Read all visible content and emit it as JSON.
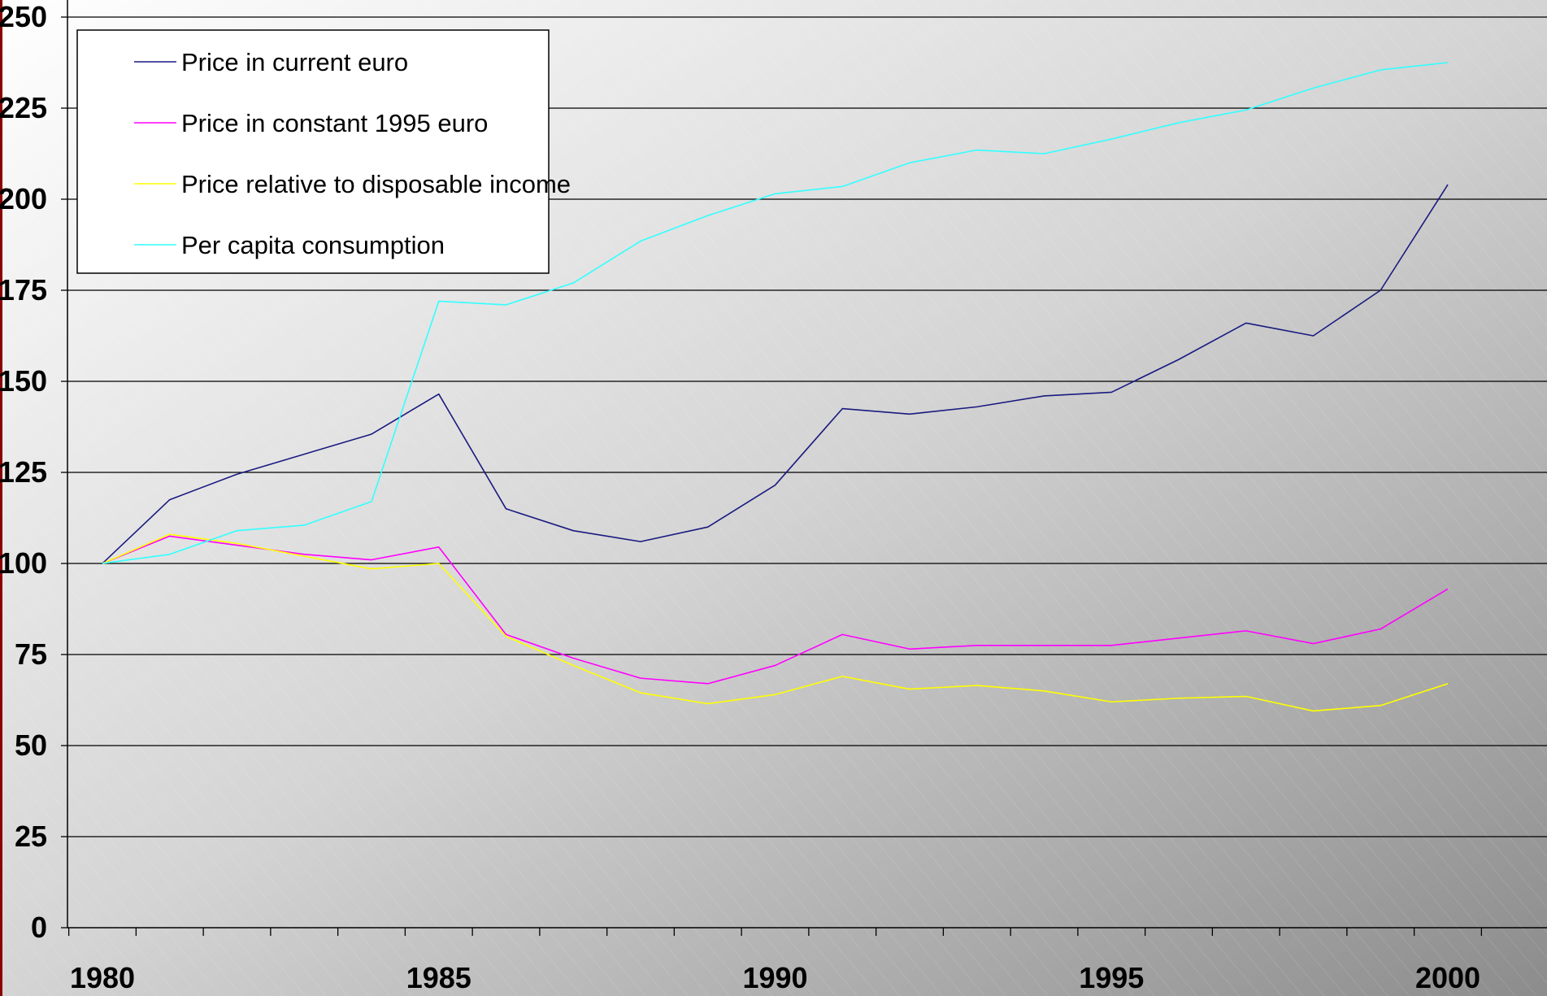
{
  "chart_data": {
    "type": "line",
    "title": "",
    "xlabel": "",
    "ylabel": "",
    "x": [
      1980,
      1981,
      1982,
      1983,
      1984,
      1985,
      1986,
      1987,
      1988,
      1989,
      1990,
      1991,
      1992,
      1993,
      1994,
      1995,
      1996,
      1997,
      1998,
      1999,
      2000
    ],
    "x_tick_labels": [
      "1980",
      "1985",
      "1990",
      "1995",
      "2000"
    ],
    "y_tick_labels": [
      "0",
      "25",
      "50",
      "75",
      "100",
      "125",
      "150",
      "175",
      "200",
      "225",
      "250"
    ],
    "ylim": [
      0,
      250
    ],
    "grid": true,
    "legend_position": "top-left",
    "series": [
      {
        "name": "Price in current euro",
        "color": "#1a1a80",
        "values": [
          100,
          117.5,
          124.5,
          130,
          135.5,
          146.5,
          115,
          109,
          106,
          110,
          121.5,
          142.5,
          141,
          143,
          146,
          147,
          156,
          166,
          162.5,
          175,
          204
        ]
      },
      {
        "name": "Price in constant 1995 euro",
        "color": "#ff00ff",
        "values": [
          100,
          107.5,
          105,
          102.5,
          101,
          104.5,
          80.5,
          74,
          68.5,
          67,
          72,
          80.5,
          76.5,
          77.5,
          77.5,
          77.5,
          79.5,
          81.5,
          78,
          82,
          93
        ]
      },
      {
        "name": "Price relative to disposable income",
        "color": "#ffff00",
        "values": [
          100,
          108,
          105.5,
          102,
          98.5,
          100,
          80,
          72,
          64.5,
          61.5,
          64,
          69,
          65.5,
          66.5,
          65,
          62,
          63,
          63.5,
          59.5,
          61,
          67
        ]
      },
      {
        "name": "Per capita consumption",
        "color": "#33ffff",
        "values": [
          100,
          102.5,
          109,
          110.5,
          117,
          172,
          171,
          177,
          188.5,
          195.5,
          201.5,
          203.5,
          210,
          213.5,
          212.5,
          216.5,
          221,
          224.5,
          230.5,
          235.5,
          237.5
        ]
      }
    ]
  }
}
